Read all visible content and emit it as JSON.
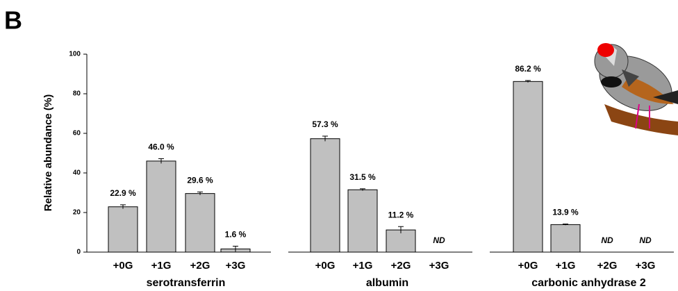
{
  "chart_data": {
    "type": "bar",
    "panel_label": "B",
    "ylabel": "Relative abundance (%)",
    "ylim": [
      0,
      100
    ],
    "yticks": [
      0,
      20,
      40,
      60,
      80,
      100
    ],
    "color": "#c0c0c0",
    "categories": [
      "+0G",
      "+1G",
      "+2G",
      "+3G"
    ],
    "groups": [
      {
        "name": "serotransferrin",
        "values": [
          22.9,
          46.0,
          29.6,
          1.6
        ],
        "errors": [
          1.0,
          1.2,
          0.8,
          1.4
        ],
        "value_labels": [
          "22.9 %",
          "46.0 %",
          "29.6 %",
          "1.6 %"
        ]
      },
      {
        "name": "albumin",
        "values": [
          57.3,
          31.5,
          11.2,
          null
        ],
        "errors": [
          1.3,
          0.5,
          1.7,
          null
        ],
        "value_labels": [
          "57.3 %",
          "31.5 %",
          "11.2 %",
          "ND"
        ]
      },
      {
        "name": "carbonic anhydrase 2",
        "values": [
          86.2,
          13.9,
          null,
          null
        ],
        "errors": [
          0.5,
          0.3,
          null,
          null
        ],
        "value_labels": [
          "86.2 %",
          "13.9 %",
          "ND",
          "ND"
        ]
      }
    ]
  }
}
